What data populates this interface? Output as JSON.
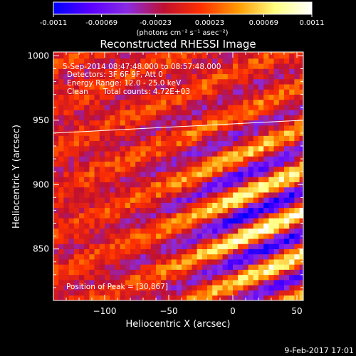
{
  "colorbar": {
    "ticks": [
      "-0.0011",
      "-0.00069",
      "-0.00023",
      "0.00023",
      "0.00069",
      "0.0011"
    ],
    "tick_values": [
      -0.0011,
      -0.00069,
      -0.00023,
      0.00023,
      0.00069,
      0.0011
    ],
    "unit_label": "(photons cm⁻² s⁻¹ asec⁻²)",
    "colors": [
      "#0000ff",
      "#5a00ff",
      "#8a2be2",
      "#c01030",
      "#ff3000",
      "#ff9a00",
      "#ffff80",
      "#ffffff"
    ]
  },
  "chart_data": {
    "type": "heatmap",
    "title": "Reconstructed RHESSI Image",
    "xlabel": "Heliocentric X (arcsec)",
    "ylabel": "Heliocentric Y (arcsec)",
    "xlim": [
      -140,
      55
    ],
    "ylim": [
      810,
      1003
    ],
    "x_ticks": [
      -100,
      -50,
      0,
      50
    ],
    "y_ticks": [
      850,
      900,
      950,
      1000
    ],
    "x_tick_labels": [
      "−100",
      "−50",
      "0",
      "50"
    ],
    "y_tick_labels": [
      "850",
      "900",
      "950",
      "1000"
    ],
    "annotations": [
      "5-Sep-2014 08:47:48.000 to 08:57:48.000",
      "Detectors: 3F 6F 9F, Att 0",
      "Energy Range: 12.0 - 25.0 keV",
      "Clean",
      "Total counts: 4.72E+03"
    ],
    "peak_label": "Position of Peak = [30,867]",
    "peak_position": [
      30,
      867
    ],
    "limb_line": {
      "x": [
        -140,
        55
      ],
      "y": [
        940,
        950
      ]
    },
    "pixel_size_arcsec": 4,
    "value_range": [
      -0.0011,
      0.0011
    ]
  },
  "footer": {
    "date": "9-Feb-2017 17:01"
  }
}
